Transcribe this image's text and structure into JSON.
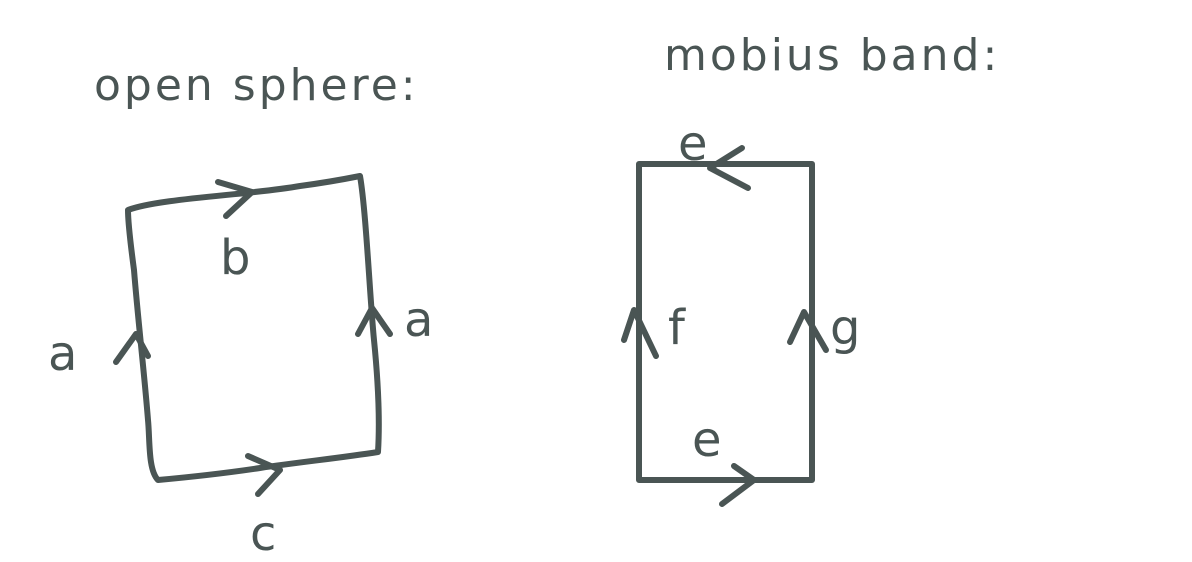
{
  "colors": {
    "ink": "#4a5554",
    "background": "#ffffff"
  },
  "open_sphere": {
    "title": "open sphere:",
    "edges": {
      "left": "a",
      "top": "b",
      "right": "a",
      "bottom": "c"
    }
  },
  "mobius_band": {
    "title": "mobius band:",
    "edges": {
      "top": "e",
      "left": "f",
      "right": "g",
      "bottom": "e"
    }
  }
}
